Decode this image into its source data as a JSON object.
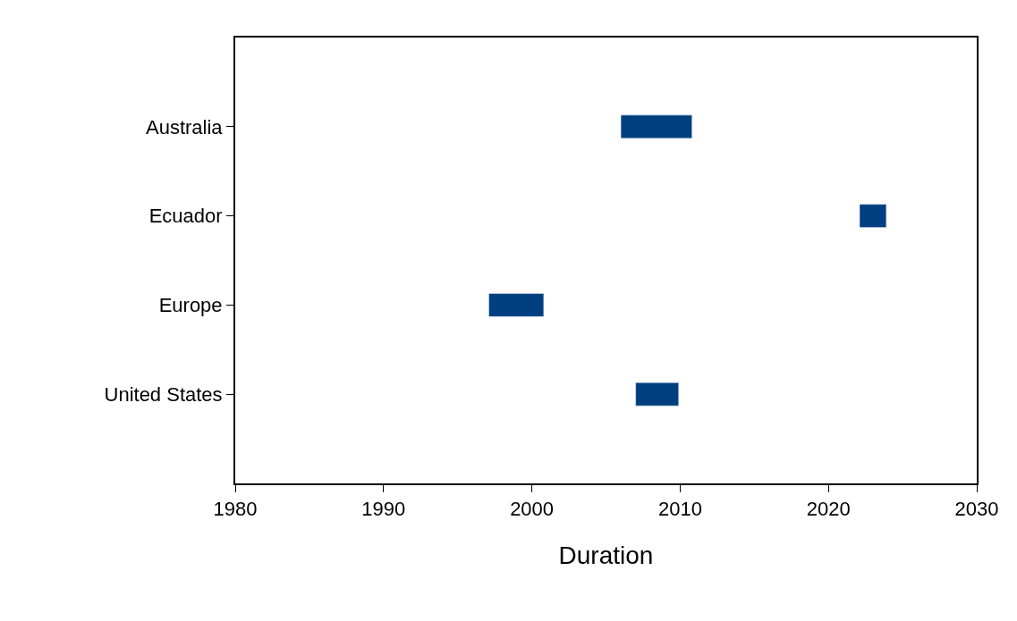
{
  "chart_data": {
    "type": "bar",
    "orientation": "horizontal",
    "xlabel": "Duration",
    "categories": [
      "Australia",
      "Ecuador",
      "Europe",
      "United States"
    ],
    "base": [
      2006.0,
      2022.1,
      1997.1,
      2007.0
    ],
    "values": [
      4.8,
      1.8,
      3.7,
      2.9
    ],
    "color": "#003f7f",
    "xlim": [
      1980,
      2030
    ],
    "xticks": [
      1980,
      1990,
      2000,
      2010,
      2020,
      2030
    ],
    "legend": false
  }
}
